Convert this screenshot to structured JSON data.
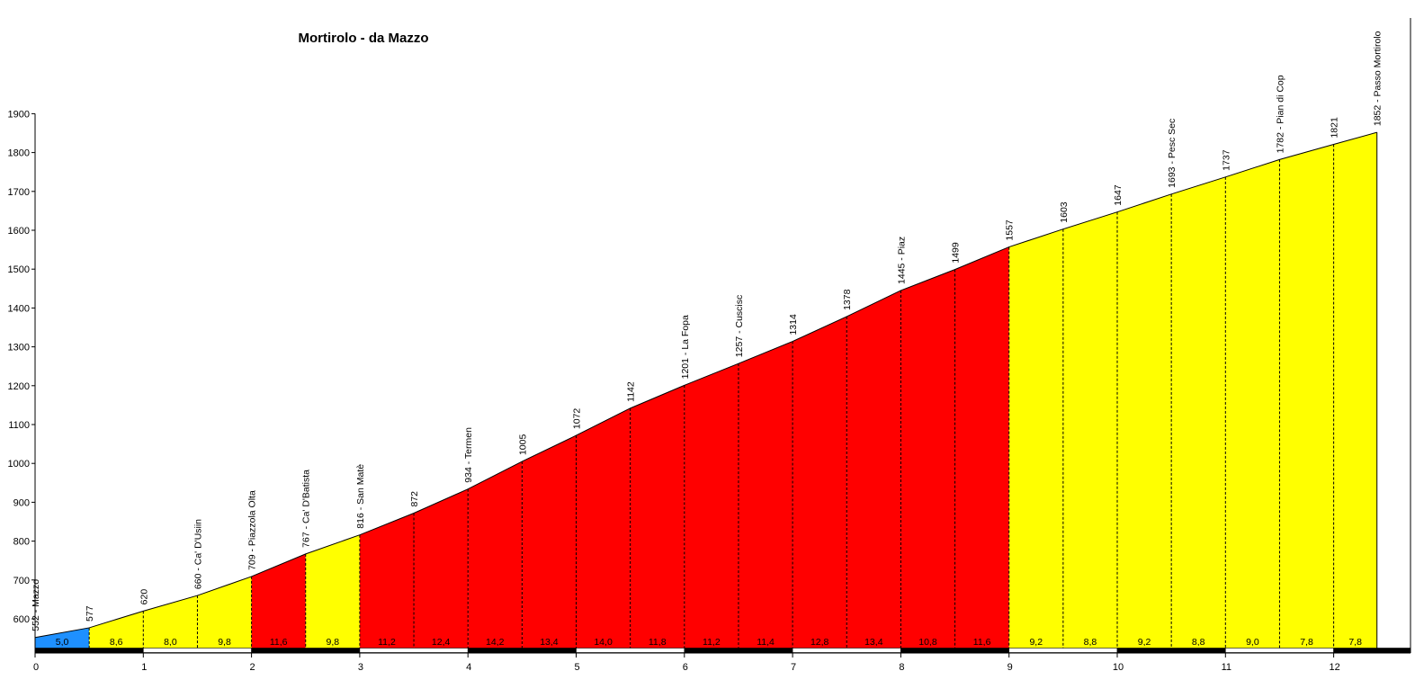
{
  "chart_data": {
    "type": "area",
    "title": "Mortirolo - da Mazzo",
    "xlabel": "",
    "ylabel": "",
    "xlim": [
      0,
      12.5
    ],
    "ylim": [
      520,
      1900
    ],
    "x_ticks": [
      0,
      1,
      2,
      3,
      4,
      5,
      6,
      7,
      8,
      9,
      10,
      11,
      12
    ],
    "y_ticks": [
      600,
      700,
      800,
      900,
      1000,
      1100,
      1200,
      1300,
      1400,
      1500,
      1600,
      1700,
      1800,
      1900
    ],
    "points": [
      {
        "km": 0.0,
        "alt": 552,
        "label": "552 - Mazzo"
      },
      {
        "km": 0.5,
        "alt": 577,
        "label": "577"
      },
      {
        "km": 1.0,
        "alt": 620,
        "label": "620"
      },
      {
        "km": 1.5,
        "alt": 660,
        "label": "660 - Ca' D'Usiin"
      },
      {
        "km": 2.0,
        "alt": 709,
        "label": "709 - Piazzola Olta"
      },
      {
        "km": 2.5,
        "alt": 767,
        "label": "767 - Ca' D'Batista"
      },
      {
        "km": 3.0,
        "alt": 816,
        "label": "816 - San Matè"
      },
      {
        "km": 3.5,
        "alt": 872,
        "label": "872"
      },
      {
        "km": 4.0,
        "alt": 934,
        "label": "934 - Termen"
      },
      {
        "km": 4.5,
        "alt": 1005,
        "label": "1005"
      },
      {
        "km": 5.0,
        "alt": 1072,
        "label": "1072"
      },
      {
        "km": 5.5,
        "alt": 1142,
        "label": "1142"
      },
      {
        "km": 6.0,
        "alt": 1201,
        "label": "1201 - La Fopa"
      },
      {
        "km": 6.5,
        "alt": 1257,
        "label": "1257 - Cuscisc"
      },
      {
        "km": 7.0,
        "alt": 1314,
        "label": "1314"
      },
      {
        "km": 7.5,
        "alt": 1378,
        "label": "1378"
      },
      {
        "km": 8.0,
        "alt": 1445,
        "label": "1445 - Piaz"
      },
      {
        "km": 8.5,
        "alt": 1499,
        "label": "1499"
      },
      {
        "km": 9.0,
        "alt": 1557,
        "label": "1557"
      },
      {
        "km": 9.5,
        "alt": 1603,
        "label": "1603"
      },
      {
        "km": 10.0,
        "alt": 1647,
        "label": "1647"
      },
      {
        "km": 10.5,
        "alt": 1693,
        "label": "1693 - Pesc Sec"
      },
      {
        "km": 11.0,
        "alt": 1737,
        "label": "1737"
      },
      {
        "km": 11.5,
        "alt": 1782,
        "label": "1782 - Pian di Cop"
      },
      {
        "km": 12.0,
        "alt": 1821,
        "label": "1821"
      },
      {
        "km": 12.4,
        "alt": 1852,
        "label": "1852 - Passo Mortirolo"
      }
    ],
    "gradients": [
      "5,0",
      "8,6",
      "8,0",
      "9,8",
      "11,6",
      "9,8",
      "11,2",
      "12,4",
      "14,2",
      "13,4",
      "14,0",
      "11,8",
      "11,2",
      "11,4",
      "12,8",
      "13,4",
      "10,8",
      "11,6",
      "9,2",
      "8,8",
      "9,2",
      "8,8",
      "9,0",
      "7,8",
      "7,8"
    ],
    "segment_colors": [
      "#1e90ff",
      "#ffff00",
      "#ffff00",
      "#ffff00",
      "#ff0000",
      "#ffff00",
      "#ff0000",
      "#ff0000",
      "#ff0000",
      "#ff0000",
      "#ff0000",
      "#ff0000",
      "#ff0000",
      "#ff0000",
      "#ff0000",
      "#ff0000",
      "#ff0000",
      "#ff0000",
      "#ffff00",
      "#ffff00",
      "#ffff00",
      "#ffff00",
      "#ffff00",
      "#ffff00",
      "#ffff00"
    ],
    "grid": false
  }
}
